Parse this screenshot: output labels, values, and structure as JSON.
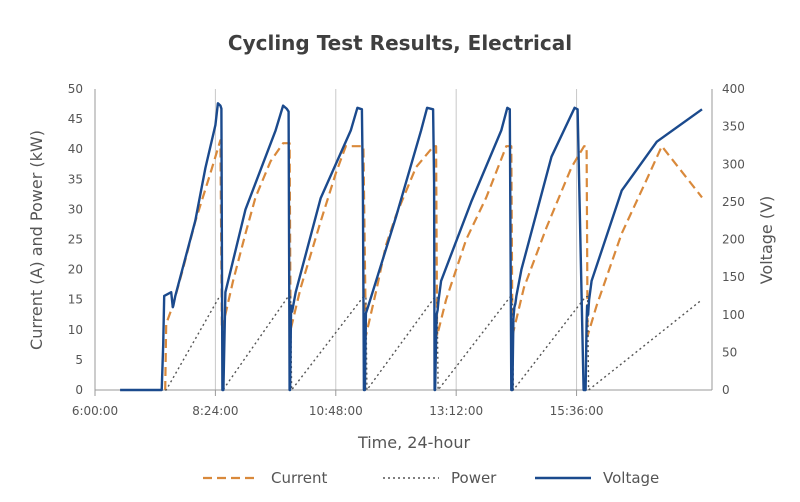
{
  "chart_data": {
    "type": "line",
    "title": "Cycling Test Results, Electrical",
    "xlabel": "Time, 24-hour",
    "ylabel_left": "Current (A) and Power (kW)",
    "ylabel_right": "Voltage (V)",
    "x_ticks": [
      "6:00:00",
      "8:24:00",
      "10:48:00",
      "13:12:00",
      "15:36:00"
    ],
    "y_left_ticks": [
      0,
      5,
      10,
      15,
      20,
      25,
      30,
      35,
      40,
      45,
      50
    ],
    "y_right_ticks": [
      0,
      50,
      100,
      150,
      200,
      250,
      300,
      350,
      400
    ],
    "y_left_lim": [
      0,
      50
    ],
    "y_right_lim": [
      0,
      400
    ],
    "x_range_hours": [
      6.0,
      18.3
    ],
    "grid": "vertical gridlines at x ticks",
    "legend_position": "bottom",
    "colors": {
      "current": "#d9893b",
      "power": "#555555",
      "voltage": "#1b4a8d"
    },
    "series": [
      {
        "name": "Current",
        "axis": "left",
        "style": "dashed",
        "x": [
          7.4,
          7.42,
          7.55,
          7.75,
          8.0,
          8.3,
          8.5,
          8.53,
          8.75,
          9.0,
          9.2,
          9.5,
          9.75,
          9.88,
          9.9,
          10.1,
          10.5,
          10.8,
          11.0,
          11.2,
          11.35,
          11.4,
          11.62,
          11.8,
          12.0,
          12.4,
          12.75,
          12.8,
          12.82,
          13.0,
          13.4,
          13.8,
          14.2,
          14.3,
          14.32,
          14.55,
          15.0,
          15.5,
          15.75,
          15.8,
          15.82,
          16.0,
          16.5,
          17.0,
          17.3,
          18.1
        ],
        "y": [
          0,
          11,
          14,
          20,
          28,
          36,
          41.5,
          10,
          18,
          26,
          32,
          38,
          41,
          41,
          10,
          17,
          28,
          36,
          40.5,
          40.5,
          40.5,
          9,
          17,
          24,
          29,
          37,
          40.5,
          40.5,
          9,
          15,
          25,
          32,
          40.5,
          40.5,
          9,
          17,
          27,
          37,
          40.5,
          40.5,
          9,
          14,
          26,
          35,
          40.5,
          32
        ]
      },
      {
        "name": "Power",
        "axis": "left",
        "style": "dotted",
        "x": [
          7.4,
          7.42,
          8.48,
          8.53,
          8.55,
          9.85,
          9.9,
          9.92,
          11.35,
          11.4,
          11.42,
          12.78,
          12.82,
          12.84,
          14.28,
          14.32,
          14.34,
          15.78,
          15.82,
          15.84,
          18.1
        ],
        "y": [
          0,
          0,
          15.5,
          15.5,
          0,
          15.5,
          15.5,
          0,
          15.5,
          15.5,
          0,
          15.5,
          15.5,
          0,
          15.5,
          15.5,
          0,
          15.5,
          15.5,
          0,
          15
        ]
      },
      {
        "name": "Voltage",
        "axis": "right",
        "style": "solid",
        "x": [
          6.5,
          7.3,
          7.33,
          7.36,
          7.38,
          7.52,
          7.55,
          7.56,
          7.6,
          8.0,
          8.2,
          8.4,
          8.45,
          8.5,
          8.52,
          8.54,
          8.56,
          8.6,
          9.0,
          9.6,
          9.75,
          9.82,
          9.86,
          9.88,
          9.89,
          9.91,
          9.93,
          10.0,
          10.5,
          11.1,
          11.23,
          11.32,
          11.34,
          11.36,
          11.38,
          11.4,
          11.44,
          12.0,
          12.5,
          12.62,
          12.74,
          12.76,
          12.77,
          12.78,
          12.81,
          12.83,
          12.85,
          12.9,
          13.5,
          14.1,
          14.22,
          14.27,
          14.3,
          14.32,
          14.34,
          14.36,
          14.38,
          14.4,
          14.5,
          15.1,
          15.56,
          15.62,
          15.74,
          15.78,
          15.8,
          15.81,
          15.83,
          15.85,
          15.9,
          16.5,
          17.2,
          18.1
        ],
        "y": [
          0,
          0,
          0,
          60,
          125,
          130,
          110,
          112,
          125,
          225,
          295,
          352,
          381,
          378,
          374,
          0,
          0,
          130,
          240,
          345,
          378,
          374,
          370,
          0,
          0,
          112,
          104,
          130,
          255,
          345,
          375,
          373,
          265,
          0,
          0,
          102,
          110,
          230,
          345,
          375,
          373,
          275,
          0,
          0,
          100,
          106,
          120,
          145,
          250,
          345,
          375,
          373,
          0,
          0,
          95,
          110,
          115,
          125,
          160,
          310,
          375,
          373,
          0,
          0,
          90,
          112,
          100,
          120,
          145,
          265,
          330,
          373
        ]
      }
    ]
  }
}
